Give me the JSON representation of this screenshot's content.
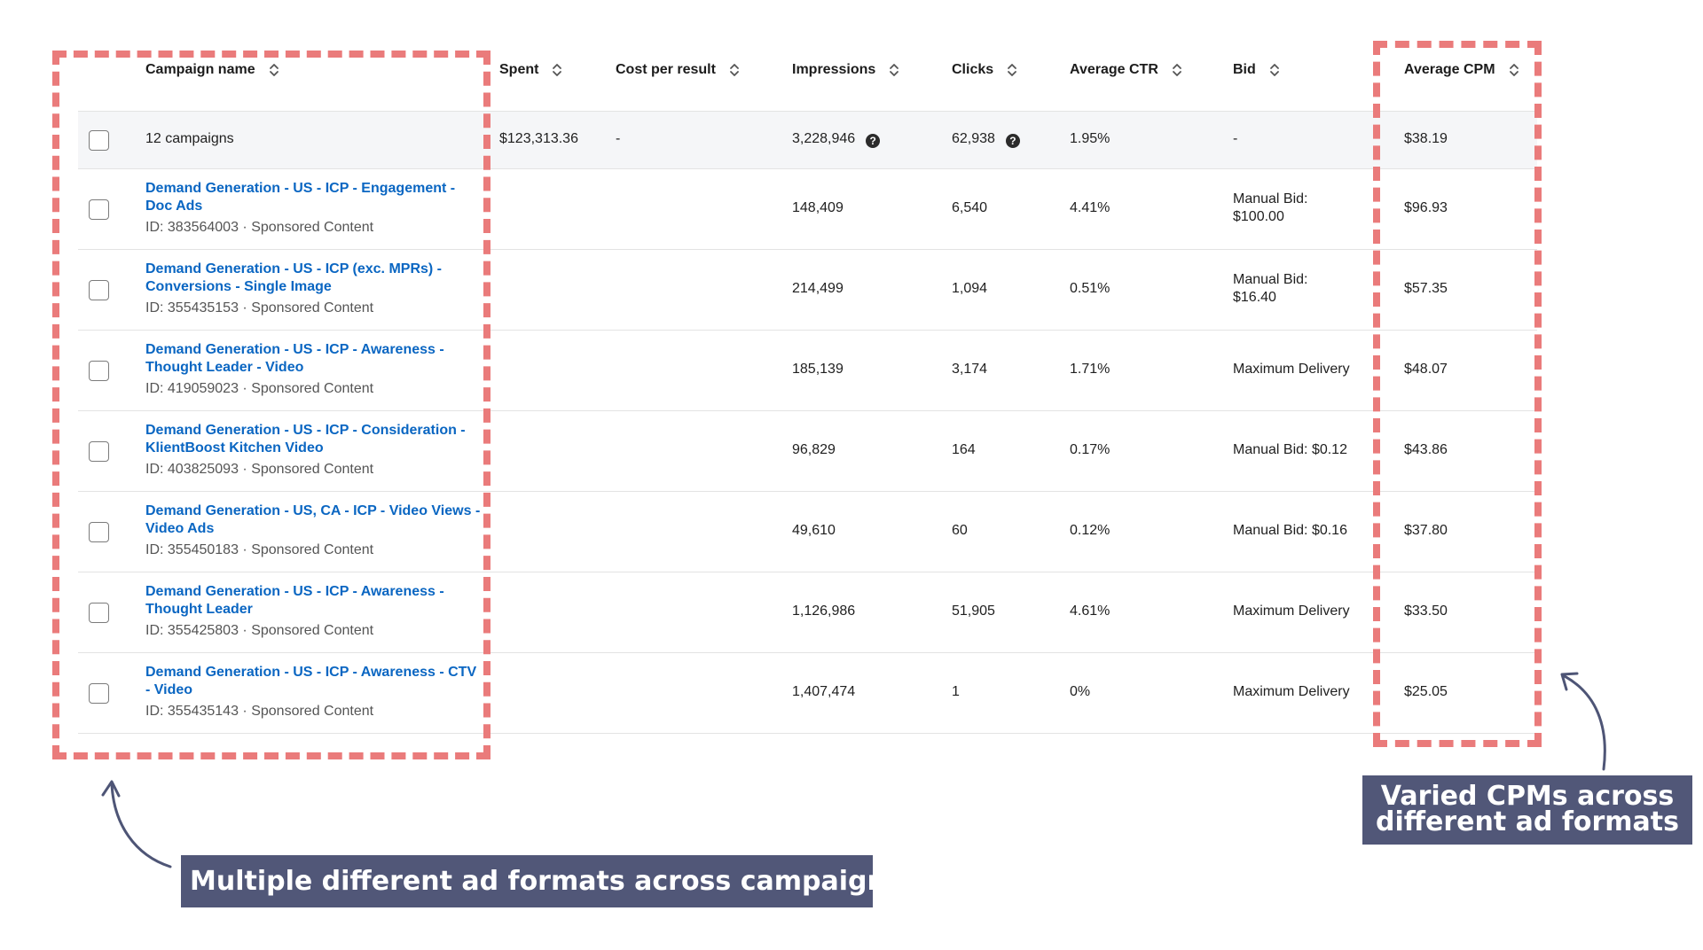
{
  "table": {
    "headers": {
      "campaign_name": "Campaign name",
      "spent": "Spent",
      "cost_per_result": "Cost per result",
      "impressions": "Impressions",
      "clicks": "Clicks",
      "average_ctr": "Average CTR",
      "bid": "Bid",
      "average_cpm": "Average CPM"
    },
    "summary": {
      "campaigns": "12 campaigns",
      "spent": "$123,313.36",
      "cost_per_result": "-",
      "impressions": "3,228,946",
      "clicks": "62,938",
      "average_ctr": "1.95%",
      "bid": "-",
      "average_cpm": "$38.19"
    },
    "rows": [
      {
        "name": "Demand Generation - US - ICP - Engagement - Doc Ads",
        "meta": "ID: 383564003 · Sponsored Content",
        "impressions": "148,409",
        "clicks": "6,540",
        "ctr": "4.41%",
        "bid": "Manual Bid: $100.00",
        "cpm": "$96.93"
      },
      {
        "name": "Demand Generation - US - ICP (exc. MPRs) - Conversions - Single Image",
        "meta": "ID: 355435153 · Sponsored Content",
        "impressions": "214,499",
        "clicks": "1,094",
        "ctr": "0.51%",
        "bid": "Manual Bid: $16.40",
        "cpm": "$57.35"
      },
      {
        "name": "Demand Generation - US - ICP - Awareness - Thought Leader - Video",
        "meta": "ID: 419059023 · Sponsored Content",
        "impressions": "185,139",
        "clicks": "3,174",
        "ctr": "1.71%",
        "bid": "Maximum Delivery",
        "cpm": "$48.07"
      },
      {
        "name": "Demand Generation - US - ICP - Consideration - KlientBoost Kitchen Video",
        "meta": "ID: 403825093 · Sponsored Content",
        "impressions": "96,829",
        "clicks": "164",
        "ctr": "0.17%",
        "bid": "Manual Bid: $0.12",
        "cpm": "$43.86"
      },
      {
        "name": "Demand Generation - US, CA - ICP - Video Views - Video Ads",
        "meta": "ID: 355450183 · Sponsored Content",
        "impressions": "49,610",
        "clicks": "60",
        "ctr": "0.12%",
        "bid": "Manual Bid: $0.16",
        "cpm": "$37.80"
      },
      {
        "name": "Demand Generation - US - ICP - Awareness - Thought Leader",
        "meta": "ID: 355425803 · Sponsored Content",
        "impressions": "1,126,986",
        "clicks": "51,905",
        "ctr": "4.61%",
        "bid": "Maximum Delivery",
        "cpm": "$33.50"
      },
      {
        "name": "Demand Generation - US - ICP - Awareness - CTV - Video",
        "meta": "ID: 355435143 · Sponsored Content",
        "impressions": "1,407,474",
        "clicks": "1",
        "ctr": "0%",
        "bid": "Maximum Delivery",
        "cpm": "$25.05"
      }
    ]
  },
  "annotations": {
    "left_callout": "Multiple different ad formats across campaigns",
    "right_callout_line1": "Varied CPMs across",
    "right_callout_line2": "different ad formats",
    "highlight_color": "#ea7b7b",
    "callout_color": "#515778",
    "link_color": "#0a66c2"
  },
  "icons": {
    "sort": "sort-arrows-icon",
    "help": "help-circle-icon",
    "arrow": "curved-arrow-icon"
  }
}
